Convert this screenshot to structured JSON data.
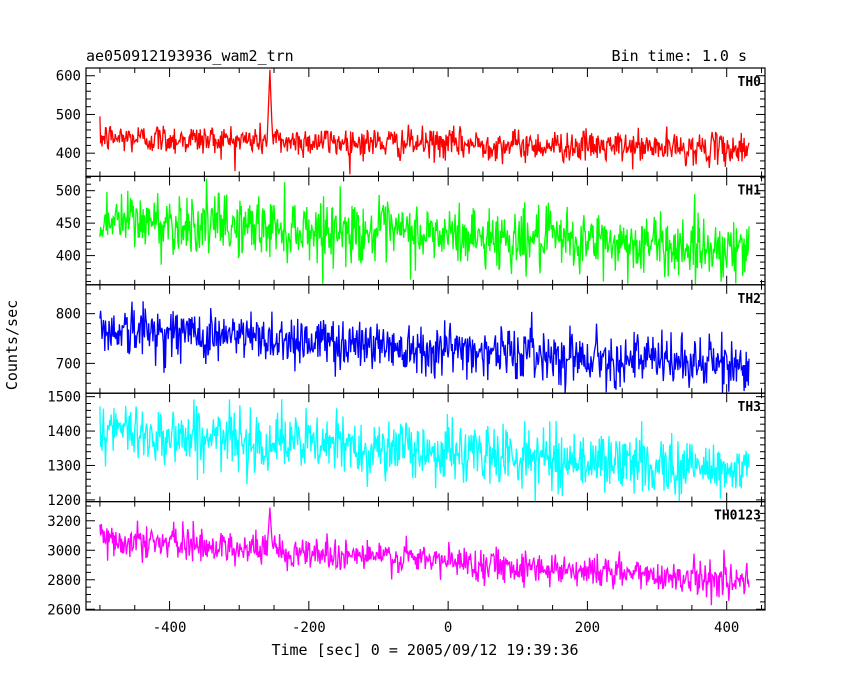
{
  "chart_data": {
    "type": "line",
    "title": "ae050912193936_wam2_trn",
    "subtitle": "Bin time: 1.0 s",
    "xlabel": "Time [sec] 0 = 2005/09/12 19:39:36",
    "ylabel": "Counts/sec",
    "xlim": [
      -520,
      455
    ],
    "x_ticks": [
      -400,
      -200,
      0,
      200,
      400
    ],
    "x_range_data": [
      -500,
      432
    ],
    "grid": false,
    "panels": [
      {
        "name": "TH0",
        "color": "#ff0000",
        "ylim": [
          340,
          620
        ],
        "y_ticks": [
          400,
          500,
          600
        ],
        "trend_start": 440,
        "trend_end": 410,
        "noise_amplitude": 32,
        "spikes": [
          {
            "x": -256,
            "value": 615
          }
        ]
      },
      {
        "name": "TH1",
        "color": "#00ff00",
        "ylim": [
          355,
          522
        ],
        "y_ticks": [
          400,
          450,
          500
        ],
        "trend_start": 455,
        "trend_end": 410,
        "noise_amplitude": 38,
        "spikes": []
      },
      {
        "name": "TH2",
        "color": "#0000ff",
        "ylim": [
          640,
          858
        ],
        "y_ticks": [
          700,
          800
        ],
        "trend_start": 770,
        "trend_end": 695,
        "noise_amplitude": 42,
        "spikes": []
      },
      {
        "name": "TH3",
        "color": "#00ffff",
        "ylim": [
          1195,
          1510
        ],
        "y_ticks": [
          1200,
          1300,
          1400,
          1500
        ],
        "trend_start": 1400,
        "trend_end": 1285,
        "noise_amplitude": 70,
        "spikes": []
      },
      {
        "name": "TH0123",
        "color": "#ff00ff",
        "ylim": [
          2595,
          3330
        ],
        "y_ticks": [
          2600,
          2800,
          3000,
          3200
        ],
        "trend_start": 3080,
        "trend_end": 2790,
        "noise_amplitude": 90,
        "spikes": [
          {
            "x": -256,
            "value": 3290
          }
        ]
      }
    ]
  }
}
